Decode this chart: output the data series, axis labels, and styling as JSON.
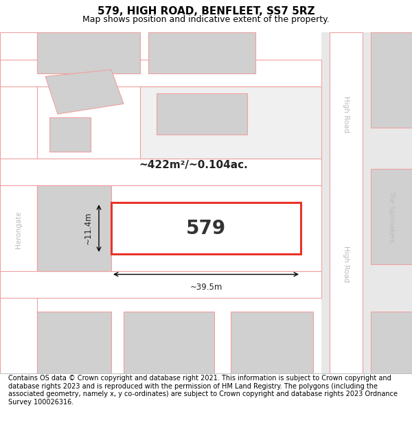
{
  "title": "579, HIGH ROAD, BENFLEET, SS7 5RZ",
  "subtitle": "Map shows position and indicative extent of the property.",
  "footer": "Contains OS data © Crown copyright and database right 2021. This information is subject to Crown copyright and database rights 2023 and is reproduced with the permission of HM Land Registry. The polygons (including the associated geometry, namely x, y co-ordinates) are subject to Crown copyright and database rights 2023 Ordnance Survey 100026316.",
  "bg_color": "#ffffff",
  "map_bg": "#f0f0f0",
  "road_color": "#ffffff",
  "block_color": "#d0d0d0",
  "plot_border_color": "#e8342a",
  "road_line_color": "#f0a0a0",
  "main_plot_label": "579",
  "area_label": "~422m²/~0.104ac.",
  "dim_width": "~39.5m",
  "dim_height": "~11.4m",
  "street_label_right1": "High Road",
  "street_label_right2": "High Road",
  "street_label_left": "Herongate",
  "junction_label": "The Spinnakers",
  "title_fontsize": 11,
  "subtitle_fontsize": 9,
  "footer_fontsize": 7
}
